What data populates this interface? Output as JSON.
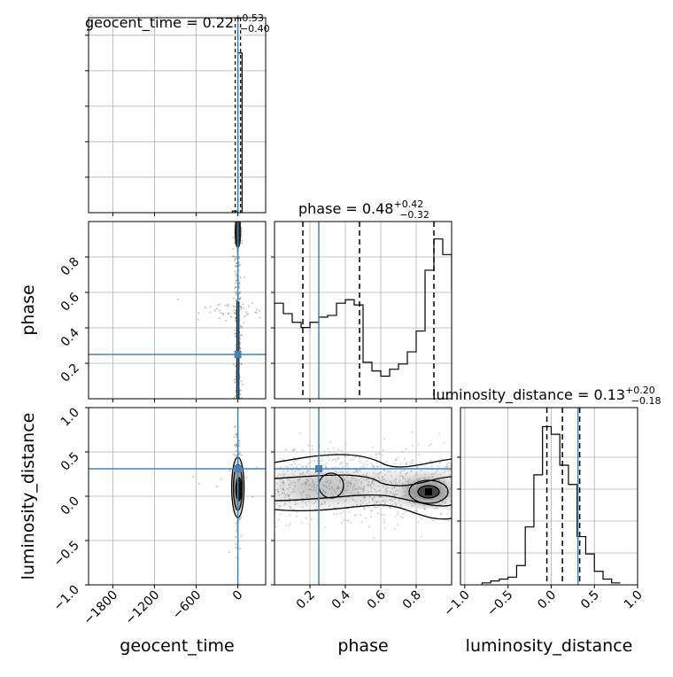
{
  "chart_data": [
    {
      "type": "histogram",
      "panel": "geocent_time-marginal",
      "title": {
        "param": "geocent_time",
        "median": "0.22",
        "upper": "+0.53",
        "lower": "−0.40"
      },
      "x_range": [
        -2150,
        400
      ],
      "bins": [
        {
          "x0": -80,
          "x1": 0,
          "h": 0.01
        },
        {
          "x0": 0,
          "x1": 60,
          "h": 0.99
        }
      ],
      "quantile_lines": [
        -0.18,
        0.22,
        0.75
      ],
      "truth": 0.0,
      "x_ticks": [
        -1800,
        -1200,
        -600,
        0
      ]
    },
    {
      "type": "scatter",
      "panel": "phase-vs-geocent_time",
      "x_range": [
        -2150,
        400
      ],
      "y_range": [
        0.0,
        1.0
      ],
      "y_ticks": [
        0.2,
        0.4,
        0.6,
        0.8
      ],
      "y_tick_labels": [
        "0.2",
        "0.4",
        "0.6",
        "0.8"
      ],
      "truth": {
        "x": 0,
        "y": 0.25
      }
    },
    {
      "type": "histogram",
      "panel": "phase-marginal",
      "title": {
        "param": "phase",
        "median": "0.48",
        "upper": "+0.42",
        "lower": "−0.32"
      },
      "x_range": [
        0.0,
        1.0
      ],
      "bin_width": 0.05,
      "heights": [
        0.55,
        0.49,
        0.44,
        0.41,
        0.44,
        0.47,
        0.48,
        0.55,
        0.57,
        0.54,
        0.21,
        0.16,
        0.13,
        0.17,
        0.2,
        0.27,
        0.39,
        0.74,
        0.92,
        0.83,
        0.63
      ],
      "quantile_lines": [
        0.16,
        0.48,
        0.9
      ],
      "truth": 0.25,
      "x_ticks": [
        0.2,
        0.4,
        0.6,
        0.8
      ]
    },
    {
      "type": "scatter",
      "panel": "luminosity_distance-vs-geocent_time",
      "x_range": [
        -2150,
        400
      ],
      "y_range": [
        -1.0,
        1.0
      ],
      "x_ticks": [
        -1800,
        -1200,
        -600,
        0
      ],
      "x_tick_labels": [
        "−1800",
        "−1200",
        "−600",
        "0"
      ],
      "y_ticks": [
        -1.0,
        -0.5,
        0.0,
        0.5,
        1.0
      ],
      "y_tick_labels": [
        "−1.0",
        "−0.5",
        "0.0",
        "0.5",
        "1.0"
      ],
      "truth": {
        "x": 0,
        "y": 0.31
      }
    },
    {
      "type": "scatter",
      "panel": "luminosity_distance-vs-phase",
      "x_range": [
        0.0,
        1.0
      ],
      "y_range": [
        -1.0,
        1.0
      ],
      "x_ticks": [
        0.2,
        0.4,
        0.6,
        0.8
      ],
      "x_tick_labels": [
        "0.2",
        "0.4",
        "0.6",
        "0.8"
      ],
      "truth": {
        "x": 0.25,
        "y": 0.31
      }
    },
    {
      "type": "histogram",
      "panel": "luminosity_distance-marginal",
      "title": {
        "param": "luminosity_distance",
        "median": "0.13",
        "upper": "+0.20",
        "lower": "−0.18"
      },
      "x_range": [
        -1.05,
        1.0
      ],
      "bin_width": 0.1,
      "bin_start": -0.8,
      "heights": [
        0.01,
        0.02,
        0.03,
        0.04,
        0.1,
        0.3,
        0.57,
        0.82,
        0.78,
        0.62,
        0.52,
        0.25,
        0.16,
        0.07,
        0.03,
        0.01
      ],
      "quantile_lines": [
        -0.05,
        0.13,
        0.33
      ],
      "truth": 0.31,
      "x_ticks": [
        -1.0,
        -0.5,
        0.0,
        0.5,
        1.0
      ],
      "x_tick_labels": [
        "−1.0",
        "−0.5",
        "0.0",
        "0.5",
        "1.0"
      ]
    }
  ],
  "axis_labels": {
    "phase": "phase",
    "luminosity_distance": "luminosity_distance",
    "geocent_time": "geocent_time",
    "phase_x": "phase",
    "luminosity_distance_x": "luminosity_distance"
  },
  "colors": {
    "truth": "#4682b4",
    "hist": "#000000",
    "grid": "#b0b0b0",
    "points": "#808080"
  }
}
